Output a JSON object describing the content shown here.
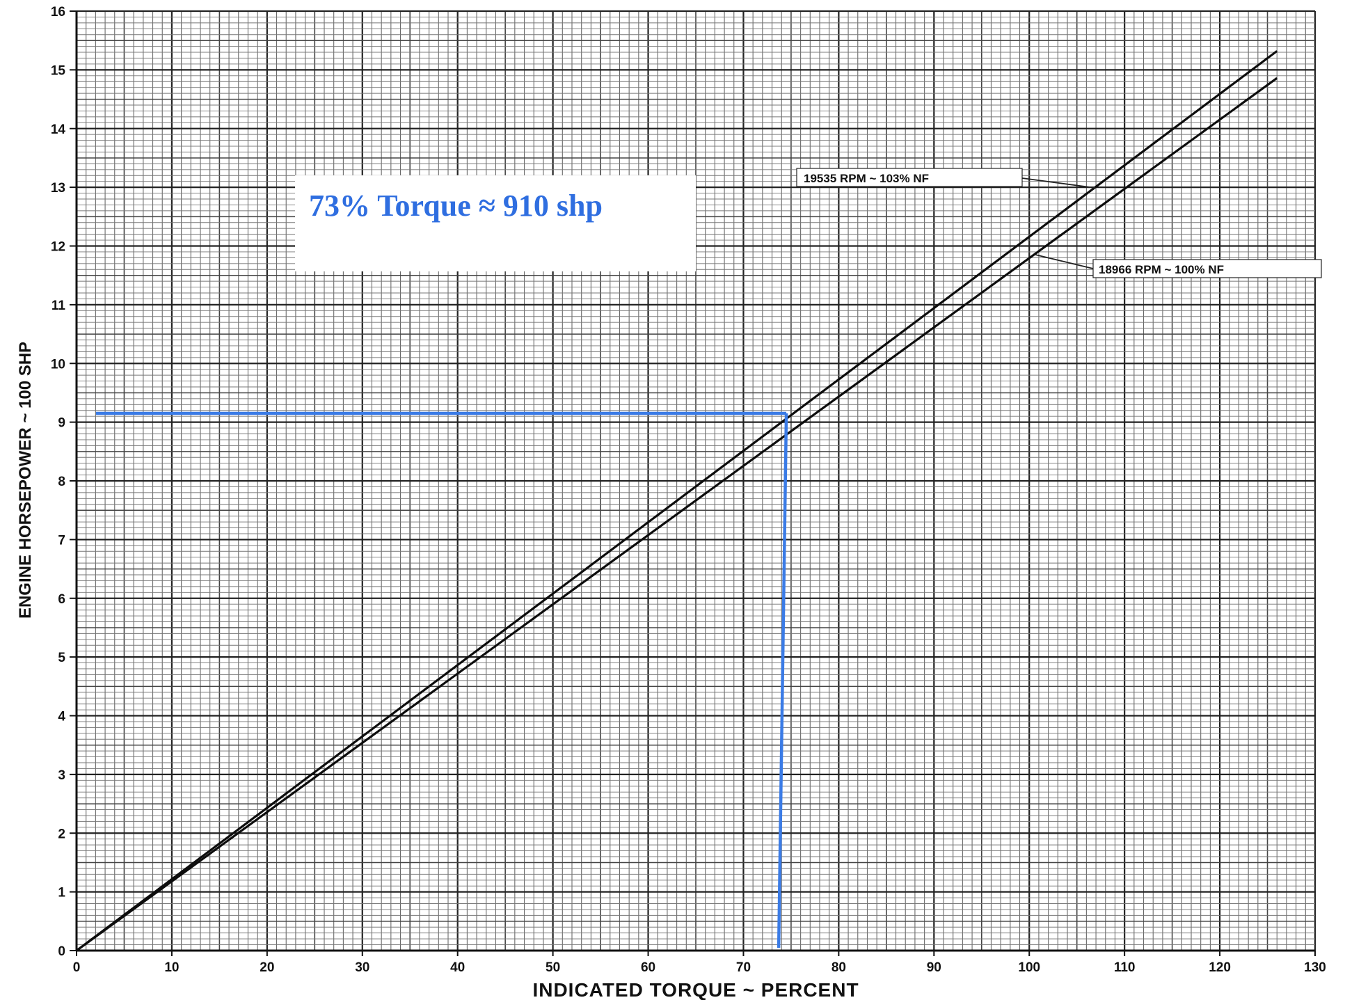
{
  "chart_data": {
    "type": "line",
    "xlabel": "INDICATED TORQUE ~ PERCENT",
    "ylabel": "ENGINE HORSEPOWER ~ 100 SHP",
    "xlim": [
      0,
      130
    ],
    "ylim": [
      0,
      16
    ],
    "x_ticks": [
      0,
      10,
      20,
      30,
      40,
      50,
      60,
      70,
      80,
      90,
      100,
      110,
      120,
      130
    ],
    "y_ticks": [
      0,
      1,
      2,
      3,
      4,
      5,
      6,
      7,
      8,
      9,
      10,
      11,
      12,
      13,
      14,
      15,
      16
    ],
    "grid": "fine graph-paper grid, major lines every 10% torque and 100 shp",
    "series": [
      {
        "name": "19535 RPM ~ 103% NF",
        "x": [
          0,
          126
        ],
        "y": [
          0,
          15.32
        ]
      },
      {
        "name": "18966 RPM ~ 100% NF",
        "x": [
          0,
          126
        ],
        "y": [
          0,
          14.86
        ]
      }
    ],
    "reference_lines": {
      "color": "#3a7be6",
      "horizontal_y": 9.15,
      "vertical_x_top": 74.5,
      "vertical_x_bottom": 73.7
    },
    "annotation": {
      "text": "73% Torque ≈ 910 shp",
      "color": "#2f6ee0"
    }
  }
}
